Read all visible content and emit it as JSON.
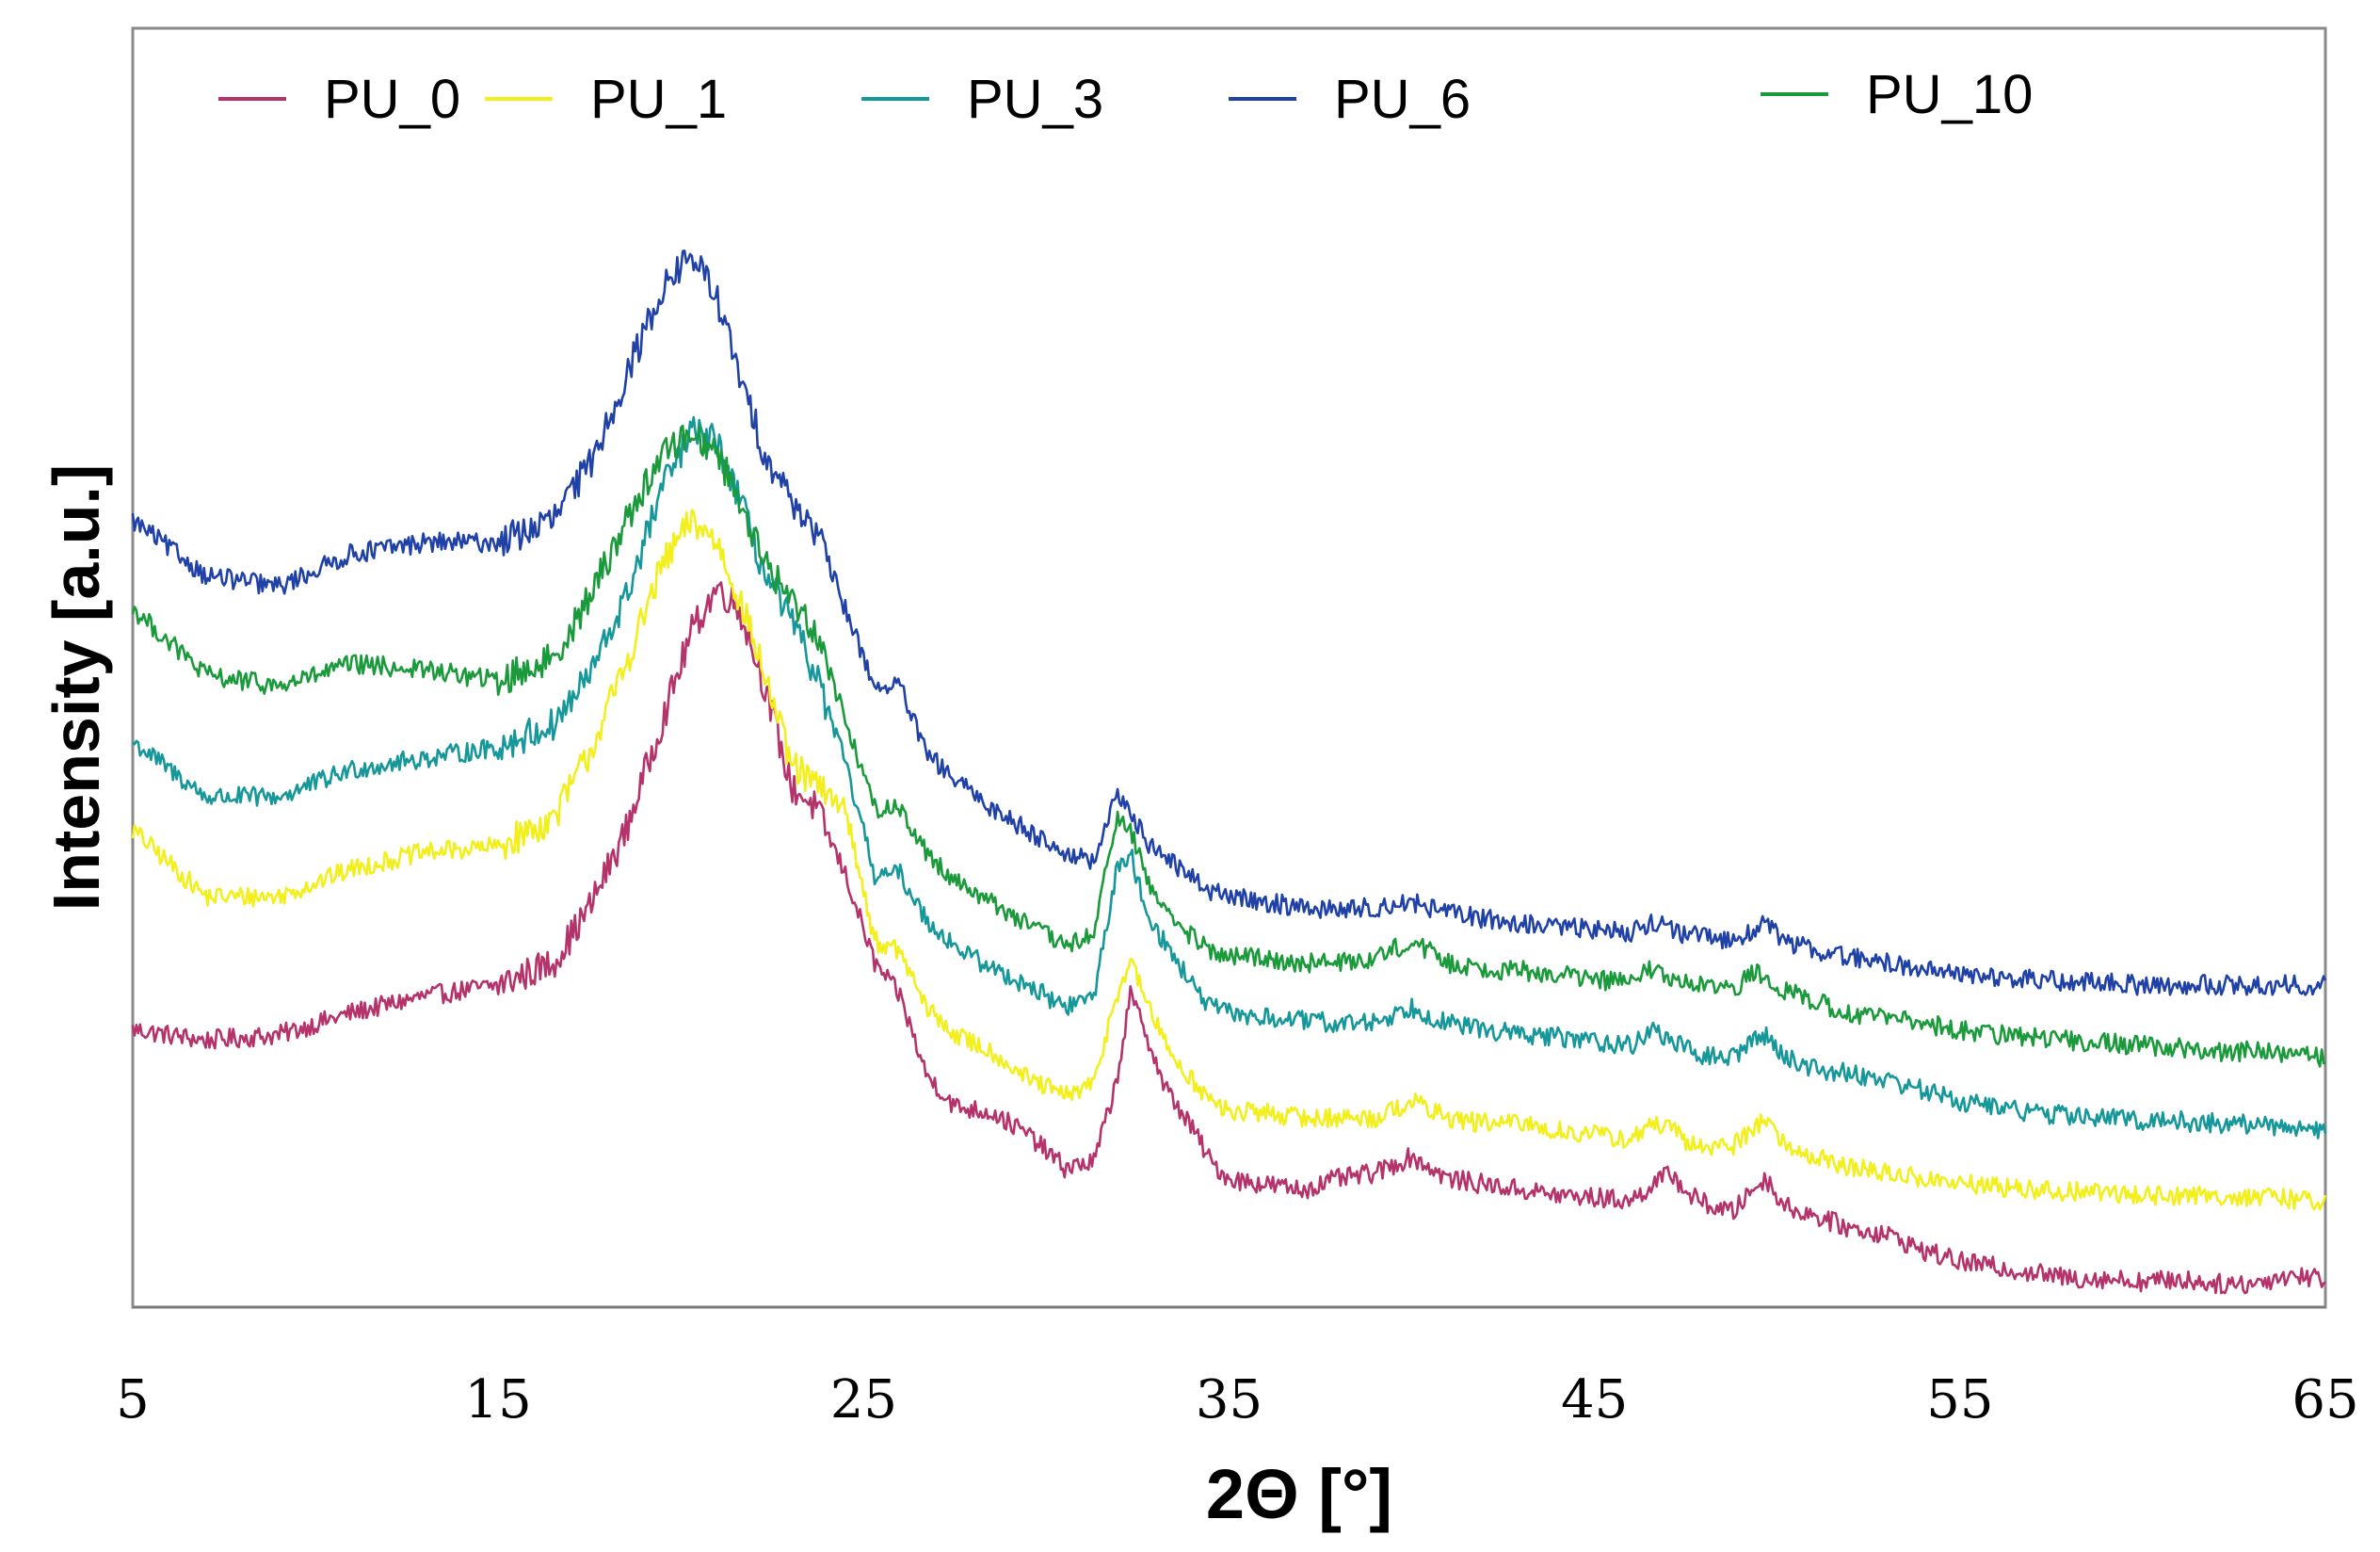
{
  "chart_data": {
    "type": "line",
    "title": "",
    "xlabel": "2Θ [°]",
    "ylabel": "Intensity [a.u.]",
    "xlim": [
      5,
      65
    ],
    "ylim": [
      0,
      100
    ],
    "xticks": [
      5,
      15,
      25,
      35,
      45,
      55,
      65
    ],
    "xtick_labels": [
      "5",
      "15",
      "25",
      "35",
      "45",
      "55",
      "65"
    ],
    "legend_position": "top",
    "grid": false,
    "series": [
      {
        "name": "PU_0",
        "color": "#b5336b",
        "x": [
          5,
          7,
          9,
          11,
          13,
          15,
          16.5,
          17.5,
          18.5,
          19.5,
          20.3,
          21,
          21.6,
          22.3,
          23,
          23.7,
          24.5,
          25.3,
          26,
          26.7,
          27.5,
          28.5,
          29.5,
          30.5,
          31.3,
          31.9,
          32.3,
          32.7,
          33.2,
          33.6,
          34.1,
          34.5,
          35,
          36,
          37,
          38,
          39,
          40,
          41,
          42,
          43,
          44,
          45,
          46,
          46.6,
          47.1,
          47.6,
          48.2,
          48.8,
          49.3,
          49.7,
          50.2,
          51,
          52,
          53,
          54,
          55,
          56,
          57,
          58,
          59,
          60,
          61,
          62,
          63,
          64,
          65
        ],
        "y": [
          24,
          23,
          23.5,
          25.5,
          27,
          28,
          30,
          35,
          42,
          52,
          60,
          64,
          62,
          55,
          46,
          44,
          38,
          30,
          27,
          20,
          17,
          16.5,
          14.5,
          11.5,
          12,
          19,
          27,
          24,
          19,
          17,
          14.5,
          12,
          10.5,
          10,
          9.5,
          10.5,
          11,
          12.5,
          10.5,
          10,
          9.5,
          9,
          8.8,
          8.5,
          10,
          11,
          9,
          8,
          7.5,
          9.5,
          10.5,
          8,
          7.2,
          6,
          5.5,
          4,
          3,
          2.5,
          2,
          1.5,
          1.5,
          1.2,
          1.4,
          1,
          1,
          1.8,
          1.5
        ]
      },
      {
        "name": "PU_1",
        "color": "#f2ef1d",
        "x": [
          5,
          7,
          9,
          11,
          13,
          15,
          16.5,
          17.5,
          18.5,
          19.5,
          20.3,
          21,
          21.6,
          22.3,
          23,
          23.7,
          24.5,
          25.3,
          26,
          26.7,
          27.5,
          28.5,
          29.5,
          30.5,
          31.3,
          31.9,
          32.3,
          32.7,
          33.2,
          33.6,
          34.1,
          34.5,
          35,
          36,
          37,
          38,
          39,
          40,
          41,
          42,
          43,
          44,
          45,
          46,
          46.6,
          47.1,
          47.6,
          48.2,
          48.8,
          49.3,
          49.7,
          50.2,
          51,
          52,
          53,
          54,
          55,
          56,
          57,
          58,
          59,
          60,
          61,
          62,
          63,
          64,
          65
        ],
        "y": [
          42,
          36,
          36,
          38.5,
          40,
          40.5,
          43,
          49,
          57,
          66,
          70,
          68,
          63,
          56,
          48,
          46,
          44,
          32,
          31,
          26,
          23.5,
          22,
          19.5,
          18,
          19,
          27,
          30,
          27,
          23,
          21,
          19,
          17.5,
          16.5,
          16.5,
          16,
          16,
          16,
          17.5,
          16,
          15.5,
          15.5,
          14.8,
          14.5,
          14,
          15.5,
          15,
          13.5,
          13.5,
          13.5,
          15,
          16,
          13.5,
          12.5,
          11.5,
          11,
          10.5,
          10,
          9.8,
          9.5,
          9.3,
          9.3,
          9,
          9,
          9,
          8.8,
          8.7,
          8.5
        ]
      },
      {
        "name": "PU_3",
        "color": "#16979a",
        "x": [
          5,
          7,
          9,
          11,
          13,
          15,
          16.5,
          17.5,
          18.5,
          19.5,
          20.3,
          21,
          21.6,
          22.3,
          23,
          23.7,
          24.5,
          25.3,
          26,
          26.7,
          27.5,
          28.5,
          29.5,
          30.5,
          31.3,
          31.9,
          32.3,
          32.7,
          33.2,
          33.6,
          34.1,
          34.5,
          35,
          36,
          37,
          38,
          39,
          40,
          41,
          42,
          43,
          44,
          45,
          46,
          46.6,
          47.1,
          47.6,
          48.2,
          48.8,
          49.3,
          49.7,
          50.2,
          51,
          52,
          53,
          54,
          55,
          56,
          57,
          58,
          59,
          60,
          61,
          62,
          63,
          64,
          65
        ],
        "y": [
          50,
          45,
          45,
          47.5,
          48.5,
          49.5,
          51.5,
          56,
          63,
          73,
          78,
          77,
          72,
          65,
          61,
          56,
          48,
          38,
          38,
          34,
          31.5,
          29.5,
          28,
          26,
          27,
          38,
          40,
          35,
          32,
          30,
          27.5,
          26,
          25.5,
          25,
          24.8,
          24.5,
          24.7,
          26,
          24.5,
          24,
          23.5,
          23.3,
          23,
          22.5,
          24,
          23,
          22,
          21.5,
          21.5,
          23,
          23.5,
          21.5,
          20.5,
          20,
          19.5,
          18.5,
          17.5,
          17,
          16.5,
          16.2,
          16,
          15.8,
          15.7,
          15.5,
          15.4,
          15.2,
          15
        ]
      },
      {
        "name": "PU_6",
        "color": "#2042a6",
        "x": [
          5,
          7,
          9,
          11,
          13,
          15,
          16.5,
          17.5,
          18.5,
          19.5,
          20.3,
          21,
          21.6,
          22.3,
          23,
          23.7,
          24.5,
          25.3,
          26,
          26.7,
          27.5,
          28.5,
          29.5,
          30.5,
          31.3,
          31.9,
          32.3,
          32.7,
          33.2,
          33.6,
          34.1,
          34.5,
          35,
          36,
          37,
          38,
          39,
          40,
          41,
          42,
          43,
          44,
          45,
          46,
          46.6,
          47.1,
          47.6,
          48.2,
          48.8,
          49.3,
          49.7,
          50.2,
          51,
          52,
          53,
          54,
          55,
          56,
          57,
          58,
          59,
          60,
          61,
          62,
          63,
          64,
          65
        ],
        "y": [
          70,
          65,
          64,
          67,
          68,
          68,
          70,
          75,
          83,
          91,
          94,
          90,
          83,
          76,
          72,
          69,
          62,
          55,
          55,
          49,
          46.5,
          44,
          42,
          40,
          39,
          45,
          44,
          41,
          40,
          38.5,
          37.5,
          36.5,
          36,
          35.5,
          35,
          34.8,
          35,
          35.5,
          34.5,
          34,
          33.5,
          33.3,
          33,
          32.8,
          33.8,
          33,
          32.5,
          32.2,
          32,
          33,
          33.5,
          32,
          31.2,
          30.5,
          30,
          29.5,
          29,
          28.7,
          28.5,
          28.3,
          28.2,
          28,
          28,
          28,
          28,
          28,
          28
        ]
      },
      {
        "name": "PU_10",
        "color": "#1b9a3c",
        "x": [
          5,
          7,
          9,
          11,
          13,
          15,
          16.5,
          17.5,
          18.5,
          19.5,
          20.3,
          21,
          21.6,
          22.3,
          23,
          23.7,
          24.5,
          25.3,
          26,
          26.7,
          27.5,
          28.5,
          29.5,
          30.5,
          31.3,
          31.9,
          32.3,
          32.7,
          33.2,
          33.6,
          34.1,
          34.5,
          35,
          36,
          37,
          38,
          39,
          40,
          41,
          42,
          43,
          44,
          45,
          46,
          46.6,
          47.1,
          47.6,
          48.2,
          48.8,
          49.3,
          49.7,
          50.2,
          51,
          52,
          53,
          54,
          55,
          56,
          57,
          58,
          59,
          60,
          61,
          62,
          63,
          64,
          65
        ],
        "y": [
          62,
          56,
          55,
          57,
          56.5,
          55.5,
          57.5,
          63,
          70,
          76,
          78,
          76,
          72,
          66,
          63,
          60,
          52,
          44,
          44,
          40,
          37.5,
          35.5,
          33.5,
          31.5,
          32.5,
          43,
          42,
          38,
          35,
          33.5,
          32,
          31,
          30.5,
          30.5,
          30,
          30,
          30.5,
          32,
          30,
          29.5,
          29.3,
          29,
          28.5,
          28.3,
          29.5,
          28.5,
          28,
          27.8,
          27.5,
          29,
          29,
          27.5,
          26.5,
          25.5,
          25,
          24.5,
          24,
          23.5,
          23.3,
          23,
          22.8,
          22.5,
          22.3,
          22,
          22,
          21.8,
          21.5
        ]
      }
    ]
  }
}
